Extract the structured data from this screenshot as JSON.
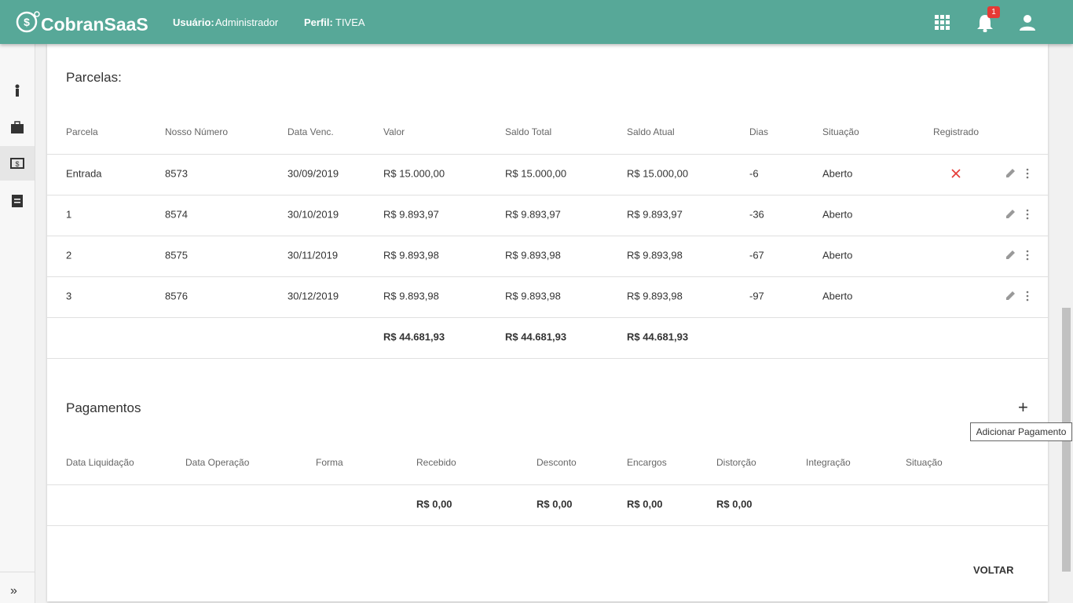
{
  "header": {
    "logo": "CobranSaaS",
    "user_label": "Usuário:",
    "user": "Administrador",
    "profile_label": "Perfil:",
    "profile": "TIVEA",
    "notifications": 1
  },
  "parcelas": {
    "title": "Parcelas:",
    "columns": [
      "Parcela",
      "Nosso Número",
      "Data Venc.",
      "Valor",
      "Saldo Total",
      "Saldo Atual",
      "Dias",
      "Situação",
      "Registrado"
    ],
    "rows": [
      [
        "Entrada",
        "8573",
        "30/09/2019",
        "R$ 15.000,00",
        "R$ 15.000,00",
        "R$ 15.000,00",
        "-6",
        "Aberto"
      ],
      [
        "1",
        "8574",
        "30/10/2019",
        "R$ 9.893,97",
        "R$ 9.893,97",
        "R$ 9.893,97",
        "-36",
        "Aberto"
      ],
      [
        "2",
        "8575",
        "30/11/2019",
        "R$ 9.893,98",
        "R$ 9.893,98",
        "R$ 9.893,98",
        "-67",
        "Aberto"
      ],
      [
        "3",
        "8576",
        "30/12/2019",
        "R$ 9.893,98",
        "R$ 9.893,98",
        "R$ 9.893,98",
        "-97",
        "Aberto"
      ]
    ],
    "totals": [
      "R$ 44.681,93",
      "R$ 44.681,93",
      "R$ 44.681,93"
    ]
  },
  "pagamentos": {
    "title": "Pagamentos",
    "columns": [
      "Data Liquidação",
      "Data Operação",
      "Forma",
      "Recebido",
      "Desconto",
      "Encargos",
      "Distorção",
      "Integração",
      "Situação"
    ],
    "totals": [
      "R$ 0,00",
      "R$ 0,00",
      "R$ 0,00",
      "R$ 0,00"
    ],
    "add_tooltip": "Adicionar Pagamento"
  },
  "back_button": "VOLTAR"
}
